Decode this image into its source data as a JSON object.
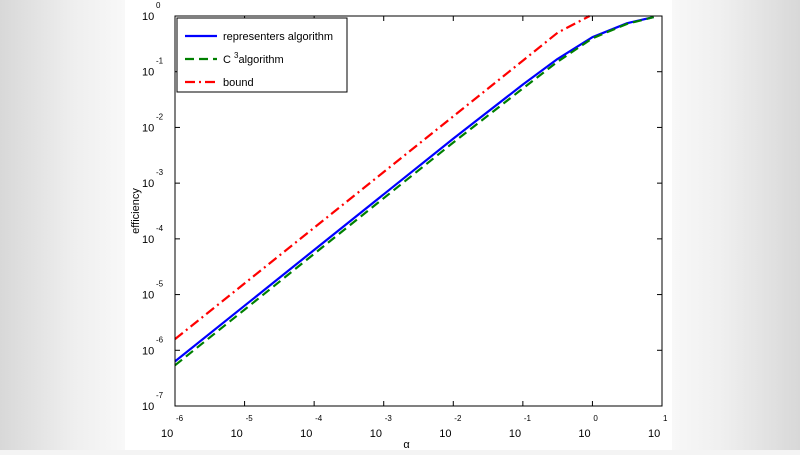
{
  "chart_data": {
    "type": "line",
    "scale": "log-log",
    "title": "",
    "xlabel": "α",
    "ylabel": "efficiency",
    "xlim": [
      -6,
      1
    ],
    "ylim": [
      -7,
      0
    ],
    "x_ticks": [
      {
        "base": "10",
        "exp": "-6"
      },
      {
        "base": "10",
        "exp": "-5"
      },
      {
        "base": "10",
        "exp": "-4"
      },
      {
        "base": "10",
        "exp": "-3"
      },
      {
        "base": "10",
        "exp": "-2"
      },
      {
        "base": "10",
        "exp": "-1"
      },
      {
        "base": "10",
        "exp": "0"
      },
      {
        "base": "10",
        "exp": "1"
      }
    ],
    "y_ticks": [
      {
        "base": "10",
        "exp": "0"
      },
      {
        "base": "10",
        "exp": "-1"
      },
      {
        "base": "10",
        "exp": "-2"
      },
      {
        "base": "10",
        "exp": "-3"
      },
      {
        "base": "10",
        "exp": "-4"
      },
      {
        "base": "10",
        "exp": "-5"
      },
      {
        "base": "10",
        "exp": "-6"
      },
      {
        "base": "10",
        "exp": "-7"
      }
    ],
    "legend": {
      "position": "top-left"
    },
    "series": [
      {
        "name": "representers algorithm",
        "color": "#0000ff",
        "style": "solid",
        "log10_x": [
          -6,
          -5,
          -4,
          -3,
          -2,
          -1,
          -0.5,
          0,
          0.5,
          0.88
        ],
        "log10_y": [
          -6.2,
          -5.2,
          -4.2,
          -3.2,
          -2.2,
          -1.23,
          -0.77,
          -0.38,
          -0.13,
          -0.02
        ]
      },
      {
        "name": "C 3algorithm",
        "legend_parts": {
          "before": "C ",
          "sup": "3",
          "after": "algorithm"
        },
        "color": "#008000",
        "style": "dashed",
        "log10_x": [
          -6,
          -5,
          -4,
          -3,
          -2,
          -1,
          -0.5,
          0,
          0.5,
          0.88
        ],
        "log10_y": [
          -6.27,
          -5.27,
          -4.27,
          -3.27,
          -2.27,
          -1.3,
          -0.82,
          -0.4,
          -0.14,
          -0.02
        ]
      },
      {
        "name": "bound",
        "color": "#ff0000",
        "style": "dashdot",
        "log10_x": [
          -6,
          -5,
          -4,
          -3,
          -2,
          -1,
          -0.5,
          -0.04
        ],
        "log10_y": [
          -5.8,
          -4.8,
          -3.8,
          -2.8,
          -1.8,
          -0.8,
          -0.3,
          0
        ]
      }
    ]
  }
}
